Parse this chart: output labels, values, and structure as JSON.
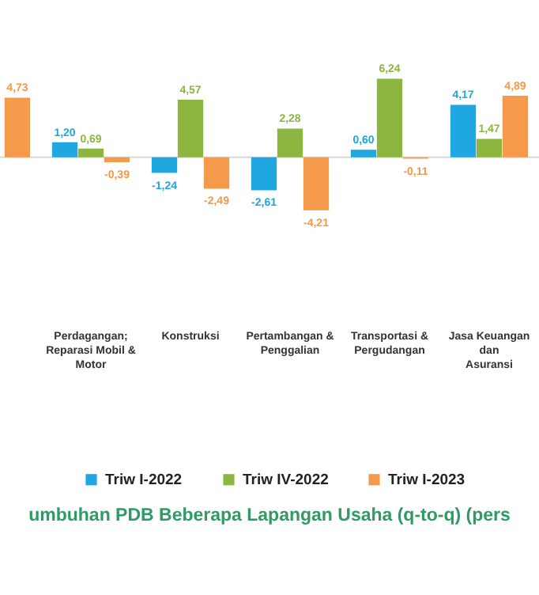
{
  "chart_data": {
    "type": "bar",
    "title": "umbuhan PDB Beberapa Lapangan Usaha (q-to-q) (pers",
    "categories": [
      null,
      "Perdagangan; Reparasi Mobil & Motor",
      "Konstruksi",
      "Pertambangan & Penggalian",
      "Transportasi & Pergudangan",
      "Jasa Keuangan dan Asuransi"
    ],
    "series": [
      {
        "name": "Triw I-2022",
        "color": "#1ea7e1",
        "values": [
          null,
          1.2,
          -1.24,
          -2.61,
          0.6,
          4.17
        ],
        "value_labels": [
          null,
          "1,20",
          "-1,24",
          "-2,61",
          "0,60",
          "4,17"
        ]
      },
      {
        "name": "Triw IV-2022",
        "color": "#8db640",
        "values": [
          null,
          0.69,
          4.57,
          2.28,
          6.24,
          1.47
        ],
        "value_labels": [
          null,
          "0,69",
          "4,57",
          "2,28",
          "6,24",
          "1,47"
        ]
      },
      {
        "name": "Triw I-2023",
        "color": "#f5994a",
        "values": [
          4.73,
          -0.39,
          -2.49,
          -4.21,
          -0.11,
          4.89
        ],
        "value_labels": [
          "4,73",
          "-0,39",
          "-2,49",
          "-4,21",
          "-0,11",
          "4,89"
        ]
      }
    ],
    "legend": "bottom"
  }
}
